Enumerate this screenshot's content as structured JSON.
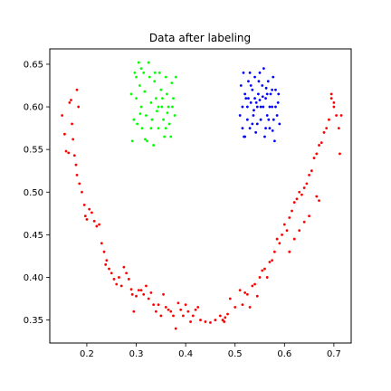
{
  "chart_data": {
    "type": "scatter",
    "title": "Data after labeling",
    "xlabel": "",
    "ylabel": "",
    "xlim": [
      0.125,
      0.735
    ],
    "ylim": [
      0.323,
      0.668
    ],
    "xticks": [
      0.2,
      0.3,
      0.4,
      0.5,
      0.6,
      0.7
    ],
    "xtick_labels": [
      "0.2",
      "0.3",
      "0.4",
      "0.5",
      "0.6",
      "0.7"
    ],
    "yticks": [
      0.35,
      0.4,
      0.45,
      0.5,
      0.55,
      0.6,
      0.65
    ],
    "ytick_labels": [
      "0.35",
      "0.40",
      "0.45",
      "0.50",
      "0.55",
      "0.60",
      "0.65"
    ],
    "grid": false,
    "series": [
      {
        "color": "#ff0000",
        "points": [
          [
            0.15,
            0.59
          ],
          [
            0.155,
            0.568
          ],
          [
            0.158,
            0.548
          ],
          [
            0.163,
            0.546
          ],
          [
            0.165,
            0.605
          ],
          [
            0.168,
            0.608
          ],
          [
            0.17,
            0.58
          ],
          [
            0.172,
            0.562
          ],
          [
            0.175,
            0.543
          ],
          [
            0.178,
            0.532
          ],
          [
            0.18,
            0.62
          ],
          [
            0.18,
            0.52
          ],
          [
            0.183,
            0.6
          ],
          [
            0.185,
            0.51
          ],
          [
            0.19,
            0.5
          ],
          [
            0.195,
            0.485
          ],
          [
            0.197,
            0.472
          ],
          [
            0.2,
            0.468
          ],
          [
            0.205,
            0.48
          ],
          [
            0.21,
            0.476
          ],
          [
            0.215,
            0.466
          ],
          [
            0.22,
            0.46
          ],
          [
            0.225,
            0.462
          ],
          [
            0.23,
            0.44
          ],
          [
            0.235,
            0.43
          ],
          [
            0.238,
            0.415
          ],
          [
            0.24,
            0.42
          ],
          [
            0.245,
            0.41
          ],
          [
            0.25,
            0.405
          ],
          [
            0.255,
            0.398
          ],
          [
            0.26,
            0.392
          ],
          [
            0.265,
            0.4
          ],
          [
            0.27,
            0.39
          ],
          [
            0.275,
            0.412
          ],
          [
            0.28,
            0.405
          ],
          [
            0.285,
            0.398
          ],
          [
            0.29,
            0.386
          ],
          [
            0.292,
            0.38
          ],
          [
            0.295,
            0.36
          ],
          [
            0.3,
            0.378
          ],
          [
            0.305,
            0.385
          ],
          [
            0.31,
            0.385
          ],
          [
            0.315,
            0.38
          ],
          [
            0.32,
            0.39
          ],
          [
            0.325,
            0.375
          ],
          [
            0.33,
            0.382
          ],
          [
            0.335,
            0.368
          ],
          [
            0.34,
            0.36
          ],
          [
            0.345,
            0.368
          ],
          [
            0.35,
            0.355
          ],
          [
            0.355,
            0.38
          ],
          [
            0.36,
            0.365
          ],
          [
            0.365,
            0.362
          ],
          [
            0.37,
            0.36
          ],
          [
            0.375,
            0.355
          ],
          [
            0.38,
            0.34
          ],
          [
            0.385,
            0.37
          ],
          [
            0.39,
            0.362
          ],
          [
            0.395,
            0.355
          ],
          [
            0.4,
            0.368
          ],
          [
            0.405,
            0.36
          ],
          [
            0.41,
            0.348
          ],
          [
            0.415,
            0.355
          ],
          [
            0.42,
            0.362
          ],
          [
            0.425,
            0.365
          ],
          [
            0.43,
            0.35
          ],
          [
            0.44,
            0.348
          ],
          [
            0.45,
            0.347
          ],
          [
            0.46,
            0.35
          ],
          [
            0.47,
            0.355
          ],
          [
            0.475,
            0.35
          ],
          [
            0.478,
            0.348
          ],
          [
            0.48,
            0.353
          ],
          [
            0.485,
            0.357
          ],
          [
            0.49,
            0.375
          ],
          [
            0.5,
            0.365
          ],
          [
            0.51,
            0.385
          ],
          [
            0.515,
            0.368
          ],
          [
            0.52,
            0.382
          ],
          [
            0.525,
            0.38
          ],
          [
            0.53,
            0.365
          ],
          [
            0.535,
            0.39
          ],
          [
            0.54,
            0.392
          ],
          [
            0.545,
            0.378
          ],
          [
            0.55,
            0.4
          ],
          [
            0.555,
            0.408
          ],
          [
            0.56,
            0.41
          ],
          [
            0.565,
            0.4
          ],
          [
            0.57,
            0.418
          ],
          [
            0.575,
            0.42
          ],
          [
            0.58,
            0.43
          ],
          [
            0.585,
            0.445
          ],
          [
            0.59,
            0.44
          ],
          [
            0.595,
            0.45
          ],
          [
            0.6,
            0.462
          ],
          [
            0.605,
            0.455
          ],
          [
            0.61,
            0.47
          ],
          [
            0.615,
            0.478
          ],
          [
            0.62,
            0.488
          ],
          [
            0.625,
            0.492
          ],
          [
            0.63,
            0.5
          ],
          [
            0.635,
            0.497
          ],
          [
            0.64,
            0.505
          ],
          [
            0.645,
            0.51
          ],
          [
            0.65,
            0.52
          ],
          [
            0.655,
            0.525
          ],
          [
            0.66,
            0.54
          ],
          [
            0.665,
            0.545
          ],
          [
            0.67,
            0.555
          ],
          [
            0.675,
            0.558
          ],
          [
            0.68,
            0.57
          ],
          [
            0.685,
            0.575
          ],
          [
            0.69,
            0.585
          ],
          [
            0.695,
            0.61
          ],
          [
            0.7,
            0.6
          ],
          [
            0.705,
            0.59
          ],
          [
            0.71,
            0.575
          ],
          [
            0.712,
            0.545
          ],
          [
            0.715,
            0.59
          ],
          [
            0.695,
            0.615
          ],
          [
            0.7,
            0.605
          ],
          [
            0.665,
            0.495
          ],
          [
            0.67,
            0.49
          ],
          [
            0.65,
            0.472
          ],
          [
            0.64,
            0.465
          ],
          [
            0.63,
            0.455
          ],
          [
            0.62,
            0.445
          ],
          [
            0.61,
            0.43
          ]
        ]
      },
      {
        "color": "#00ff00",
        "points": [
          [
            0.29,
            0.615
          ],
          [
            0.292,
            0.56
          ],
          [
            0.295,
            0.585
          ],
          [
            0.297,
            0.64
          ],
          [
            0.3,
            0.61
          ],
          [
            0.302,
            0.58
          ],
          [
            0.305,
            0.652
          ],
          [
            0.307,
            0.625
          ],
          [
            0.31,
            0.6
          ],
          [
            0.312,
            0.575
          ],
          [
            0.315,
            0.64
          ],
          [
            0.317,
            0.618
          ],
          [
            0.32,
            0.59
          ],
          [
            0.322,
            0.56
          ],
          [
            0.325,
            0.652
          ],
          [
            0.327,
            0.635
          ],
          [
            0.33,
            0.605
          ],
          [
            0.332,
            0.585
          ],
          [
            0.335,
            0.555
          ],
          [
            0.337,
            0.63
          ],
          [
            0.34,
            0.61
          ],
          [
            0.342,
            0.595
          ],
          [
            0.345,
            0.575
          ],
          [
            0.347,
            0.64
          ],
          [
            0.35,
            0.62
          ],
          [
            0.352,
            0.6
          ],
          [
            0.355,
            0.585
          ],
          [
            0.357,
            0.565
          ],
          [
            0.36,
            0.635
          ],
          [
            0.362,
            0.615
          ],
          [
            0.365,
            0.6
          ],
          [
            0.367,
            0.58
          ],
          [
            0.37,
            0.565
          ],
          [
            0.372,
            0.628
          ],
          [
            0.375,
            0.61
          ],
          [
            0.378,
            0.59
          ],
          [
            0.38,
            0.635
          ],
          [
            0.31,
            0.645
          ],
          [
            0.33,
            0.575
          ],
          [
            0.345,
            0.6
          ],
          [
            0.36,
            0.575
          ],
          [
            0.318,
            0.562
          ],
          [
            0.3,
            0.635
          ],
          [
            0.338,
            0.64
          ],
          [
            0.353,
            0.61
          ],
          [
            0.363,
            0.593
          ],
          [
            0.373,
            0.6
          ],
          [
            0.308,
            0.592
          ]
        ]
      },
      {
        "color": "#0000ff",
        "points": [
          [
            0.51,
            0.59
          ],
          [
            0.512,
            0.625
          ],
          [
            0.515,
            0.6
          ],
          [
            0.517,
            0.64
          ],
          [
            0.52,
            0.565
          ],
          [
            0.522,
            0.61
          ],
          [
            0.525,
            0.585
          ],
          [
            0.527,
            0.63
          ],
          [
            0.53,
            0.575
          ],
          [
            0.532,
            0.605
          ],
          [
            0.535,
            0.62
          ],
          [
            0.537,
            0.59
          ],
          [
            0.54,
            0.635
          ],
          [
            0.542,
            0.57
          ],
          [
            0.545,
            0.6
          ],
          [
            0.547,
            0.615
          ],
          [
            0.55,
            0.64
          ],
          [
            0.552,
            0.585
          ],
          [
            0.555,
            0.625
          ],
          [
            0.557,
            0.6
          ],
          [
            0.56,
            0.565
          ],
          [
            0.562,
            0.61
          ],
          [
            0.565,
            0.59
          ],
          [
            0.567,
            0.63
          ],
          [
            0.57,
            0.575
          ],
          [
            0.572,
            0.615
          ],
          [
            0.575,
            0.6
          ],
          [
            0.577,
            0.635
          ],
          [
            0.58,
            0.56
          ],
          [
            0.582,
            0.62
          ],
          [
            0.585,
            0.59
          ],
          [
            0.587,
            0.605
          ],
          [
            0.59,
            0.58
          ],
          [
            0.515,
            0.575
          ],
          [
            0.53,
            0.64
          ],
          [
            0.545,
            0.58
          ],
          [
            0.558,
            0.645
          ],
          [
            0.57,
            0.6
          ],
          [
            0.525,
            0.6
          ],
          [
            0.54,
            0.61
          ],
          [
            0.552,
            0.6
          ],
          [
            0.565,
            0.615
          ],
          [
            0.578,
            0.585
          ],
          [
            0.52,
            0.615
          ],
          [
            0.535,
            0.58
          ],
          [
            0.548,
            0.63
          ],
          [
            0.562,
            0.575
          ],
          [
            0.575,
            0.62
          ],
          [
            0.518,
            0.565
          ],
          [
            0.532,
            0.625
          ],
          [
            0.543,
            0.605
          ],
          [
            0.556,
            0.612
          ],
          [
            0.568,
            0.585
          ],
          [
            0.582,
            0.6
          ],
          [
            0.527,
            0.61
          ],
          [
            0.538,
            0.596
          ],
          [
            0.55,
            0.608
          ],
          [
            0.563,
            0.622
          ],
          [
            0.576,
            0.572
          ],
          [
            0.588,
            0.615
          ]
        ]
      }
    ]
  }
}
